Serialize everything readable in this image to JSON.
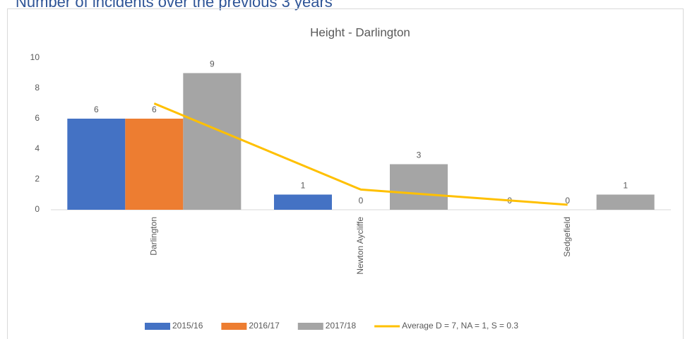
{
  "heading": "Number of incidents over the previous 3 years",
  "chart_data": {
    "type": "bar",
    "title": "Height - Darlington",
    "categories": [
      "Darlington",
      "Newton Aycliffe",
      "Sedgefield"
    ],
    "series": [
      {
        "name": "2015/16",
        "color": "#4472c4",
        "values": [
          6,
          1,
          0
        ]
      },
      {
        "name": "2016/17",
        "color": "#ed7d31",
        "values": [
          6,
          0,
          0
        ]
      },
      {
        "name": "2017/18",
        "color": "#a5a5a5",
        "values": [
          9,
          3,
          1
        ]
      },
      {
        "name": "Average D = 7, NA = 1, S = 0.3",
        "color": "#ffc000",
        "type": "line",
        "values": [
          7,
          1.33,
          0.33
        ]
      }
    ],
    "ylim": [
      0,
      10
    ],
    "yticks": [
      0,
      2,
      4,
      6,
      8,
      10
    ],
    "grid": false,
    "legend": "bottom"
  }
}
